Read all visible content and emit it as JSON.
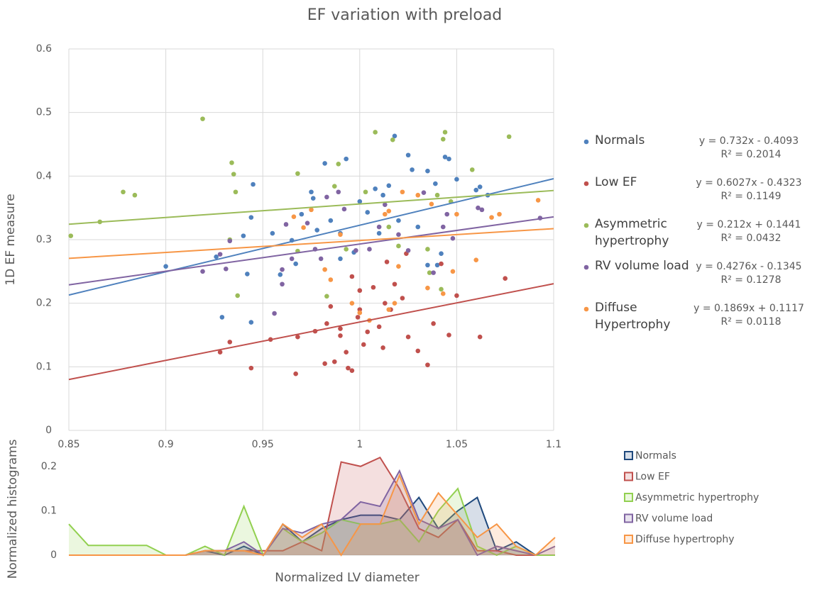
{
  "chart_data": [
    {
      "type": "scatter",
      "title": "EF variation with preload",
      "y_label": "1D EF measure",
      "xlim": [
        0.85,
        1.1
      ],
      "xticks": [
        0.85,
        0.9,
        0.95,
        1,
        1.05,
        1.1
      ],
      "ylim": [
        0,
        0.6
      ],
      "yticks": [
        0,
        0.1,
        0.2,
        0.3,
        0.4,
        0.5,
        0.6
      ],
      "grid": true,
      "series": [
        {
          "name": "Normals",
          "color": "#4f81bd",
          "x": [
            0.9,
            0.929,
            0.926,
            0.94,
            0.942,
            0.944,
            0.945,
            0.944,
            0.955,
            0.959,
            0.965,
            0.967,
            0.97,
            0.975,
            0.976,
            0.978,
            0.982,
            0.985,
            0.99,
            0.993,
            0.997,
            1.0,
            1.004,
            1.008,
            1.012,
            1.015,
            1.018,
            1.02,
            1.025,
            1.027,
            1.035,
            1.039,
            1.04,
            1.042,
            1.044,
            1.046,
            1.05,
            1.06,
            1.062,
            1.066,
            1.03,
            1.01,
            0.99,
            1.035
          ],
          "values": [
            0.258,
            0.178,
            0.273,
            0.306,
            0.246,
            0.17,
            0.387,
            0.335,
            0.31,
            0.245,
            0.299,
            0.262,
            0.34,
            0.375,
            0.365,
            0.315,
            0.42,
            0.33,
            0.31,
            0.427,
            0.28,
            0.36,
            0.343,
            0.38,
            0.37,
            0.385,
            0.463,
            0.33,
            0.433,
            0.41,
            0.408,
            0.388,
            0.26,
            0.278,
            0.43,
            0.427,
            0.395,
            0.378,
            0.383,
            0.37,
            0.32,
            0.31,
            0.27,
            0.26
          ],
          "trendline": {
            "label": "y = 0.732x - 0.4093",
            "slope": 0.732,
            "intercept": -0.4093,
            "r2_label": "R² = 0.2014"
          }
        },
        {
          "name": "Low EF",
          "color": "#c0504d",
          "x": [
            0.928,
            0.933,
            0.944,
            0.954,
            0.967,
            0.968,
            0.977,
            0.982,
            0.983,
            0.985,
            0.987,
            0.99,
            0.993,
            0.994,
            0.996,
            0.996,
            0.999,
            1.0,
            1.002,
            1.004,
            1.007,
            1.01,
            1.012,
            1.013,
            1.016,
            1.018,
            1.022,
            1.025,
            1.03,
            1.035,
            1.038,
            1.042,
            1.046,
            1.05,
            1.062,
            1.075,
            1.024,
            1.014,
            0.99,
            1.0
          ],
          "values": [
            0.123,
            0.139,
            0.098,
            0.143,
            0.089,
            0.147,
            0.156,
            0.105,
            0.168,
            0.195,
            0.108,
            0.149,
            0.123,
            0.098,
            0.094,
            0.242,
            0.178,
            0.22,
            0.135,
            0.155,
            0.225,
            0.163,
            0.13,
            0.2,
            0.19,
            0.23,
            0.208,
            0.147,
            0.125,
            0.103,
            0.168,
            0.262,
            0.15,
            0.212,
            0.147,
            0.239,
            0.278,
            0.265,
            0.16,
            0.19
          ],
          "trendline": {
            "label": "y = 0.6027x - 0.4323",
            "slope": 0.6027,
            "intercept": -0.4323,
            "r2_label": "R² = 0.1149"
          }
        },
        {
          "name": "Asymmetric hypertrophy",
          "color": "#9bbb59",
          "x": [
            0.851,
            0.866,
            0.878,
            0.884,
            0.919,
            0.933,
            0.934,
            0.935,
            0.936,
            0.937,
            0.968,
            0.968,
            0.983,
            0.987,
            0.989,
            0.993,
            1.003,
            1.008,
            1.015,
            1.017,
            1.035,
            1.036,
            1.04,
            1.043,
            1.044,
            1.047,
            1.058,
            1.077,
            1.042,
            1.02
          ],
          "values": [
            0.306,
            0.328,
            0.375,
            0.37,
            0.49,
            0.3,
            0.421,
            0.403,
            0.375,
            0.212,
            0.404,
            0.282,
            0.211,
            0.384,
            0.419,
            0.285,
            0.375,
            0.469,
            0.32,
            0.457,
            0.285,
            0.248,
            0.37,
            0.458,
            0.469,
            0.36,
            0.41,
            0.462,
            0.222,
            0.29
          ],
          "trendline": {
            "label": "y = 0.212x + 0.1441",
            "slope": 0.212,
            "intercept": 0.1441,
            "r2_label": "R² = 0.0432"
          }
        },
        {
          "name": "RV volume load",
          "color": "#8064a2",
          "x": [
            0.919,
            0.928,
            0.931,
            0.933,
            0.956,
            0.96,
            0.96,
            0.962,
            0.965,
            0.973,
            0.977,
            0.98,
            0.983,
            0.989,
            0.992,
            0.998,
            1.005,
            1.01,
            1.013,
            1.02,
            1.025,
            1.033,
            1.038,
            1.043,
            1.048,
            1.061,
            1.063,
            1.093,
            1.045
          ],
          "values": [
            0.25,
            0.277,
            0.254,
            0.298,
            0.184,
            0.23,
            0.253,
            0.324,
            0.27,
            0.326,
            0.285,
            0.27,
            0.367,
            0.375,
            0.348,
            0.283,
            0.285,
            0.32,
            0.355,
            0.308,
            0.283,
            0.374,
            0.248,
            0.32,
            0.302,
            0.35,
            0.347,
            0.334,
            0.34
          ],
          "trendline": {
            "label": "y = 0.4276x - 0.1345",
            "slope": 0.4276,
            "intercept": -0.1345,
            "r2_label": "R² = 0.1278"
          }
        },
        {
          "name": "Diffuse Hypertrophy",
          "color": "#f79646",
          "x": [
            0.966,
            0.971,
            0.975,
            0.982,
            0.985,
            0.99,
            0.996,
            1.0,
            1.005,
            1.013,
            1.015,
            1.018,
            1.02,
            1.022,
            1.03,
            1.037,
            1.035,
            1.043,
            1.048,
            1.05,
            1.06,
            1.068,
            1.072,
            1.092,
            1.015
          ],
          "values": [
            0.336,
            0.319,
            0.347,
            0.253,
            0.237,
            0.308,
            0.2,
            0.185,
            0.173,
            0.34,
            0.345,
            0.2,
            0.258,
            0.375,
            0.37,
            0.356,
            0.224,
            0.215,
            0.25,
            0.34,
            0.268,
            0.335,
            0.34,
            0.362,
            0.19
          ],
          "trendline": {
            "label": "y = 0.1869x + 0.1117",
            "slope": 0.1869,
            "intercept": 0.1117,
            "r2_label": "R² = 0.0118"
          }
        }
      ]
    },
    {
      "type": "area",
      "x_label": "Normalized LV diameter",
      "y_label": "Normalized histograms",
      "x": [
        0.85,
        0.86,
        0.87,
        0.88,
        0.89,
        0.9,
        0.91,
        0.92,
        0.93,
        0.94,
        0.95,
        0.96,
        0.97,
        0.98,
        0.99,
        1.0,
        1.01,
        1.02,
        1.03,
        1.04,
        1.05,
        1.06,
        1.07,
        1.08,
        1.09,
        1.1
      ],
      "xlim": [
        0.85,
        1.1
      ],
      "ylim": [
        0,
        0.23
      ],
      "yticks": [
        0,
        0.1,
        0.2
      ],
      "series": [
        {
          "name": "Normals",
          "color": "#1f497d",
          "values": [
            0,
            0,
            0,
            0,
            0,
            0,
            0,
            0.01,
            0,
            0.02,
            0,
            0.07,
            0.03,
            0.06,
            0.08,
            0.09,
            0.09,
            0.08,
            0.13,
            0.06,
            0.1,
            0.13,
            0.01,
            0.03,
            0,
            0
          ]
        },
        {
          "name": "Low EF",
          "color": "#c0504d",
          "values": [
            0,
            0,
            0,
            0,
            0,
            0,
            0,
            0.01,
            0.01,
            0.01,
            0.01,
            0.01,
            0.03,
            0.01,
            0.21,
            0.2,
            0.22,
            0.15,
            0.06,
            0.04,
            0.08,
            0.01,
            0.01,
            0,
            0,
            0
          ]
        },
        {
          "name": "Asymmetric hypertrophy",
          "color": "#92d050",
          "values": [
            0.07,
            0.022,
            0.022,
            0.022,
            0.022,
            0,
            0,
            0.02,
            0,
            0.11,
            0,
            0.06,
            0.03,
            0.05,
            0.08,
            0.07,
            0.07,
            0.08,
            0.03,
            0.1,
            0.15,
            0.02,
            0,
            0.02,
            0,
            0
          ]
        },
        {
          "name": "RV volume load",
          "color": "#8064a2",
          "values": [
            0,
            0,
            0,
            0,
            0,
            0,
            0,
            0.01,
            0.01,
            0.03,
            0,
            0.06,
            0.05,
            0.07,
            0.08,
            0.12,
            0.11,
            0.19,
            0.08,
            0.06,
            0.08,
            0,
            0.02,
            0.01,
            0,
            0.02
          ]
        },
        {
          "name": "Diffuse hypertrophy",
          "color": "#f79646",
          "values": [
            0,
            0,
            0,
            0,
            0,
            0,
            0,
            0.01,
            0.01,
            0.01,
            0,
            0.07,
            0.04,
            0.07,
            0,
            0.07,
            0.07,
            0.18,
            0.07,
            0.14,
            0.09,
            0.04,
            0.07,
            0.02,
            0,
            0.04
          ]
        }
      ]
    }
  ]
}
